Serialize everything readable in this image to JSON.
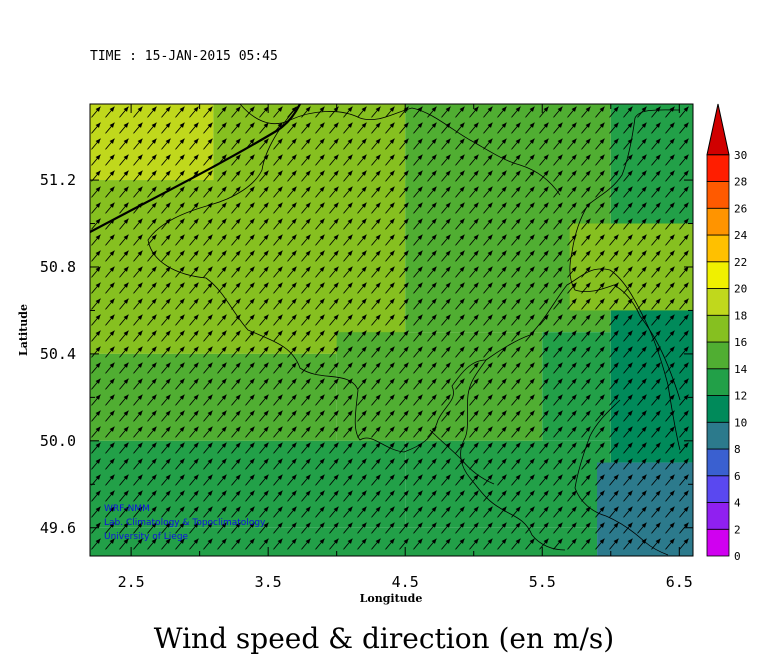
{
  "header": {
    "time_label": "TIME : 15-JAN-2015 05:45"
  },
  "credits": [
    "WRF-NMM",
    "Lab. Climatology & Topoclimatology",
    "University of Liege"
  ],
  "footer": {
    "title": "Wind speed & direction (en m/s)"
  },
  "chart_data": {
    "type": "heatmap",
    "xlabel": "Longitude",
    "ylabel": "Latitude",
    "xlim": [
      2.2,
      6.6
    ],
    "ylim": [
      49.47,
      51.55
    ],
    "x_ticks": [
      2.5,
      3.5,
      4.5,
      5.5,
      6.5
    ],
    "x_tick_labels": [
      "2.5",
      "3.5",
      "4.5",
      "5.5",
      "6.5"
    ],
    "y_ticks": [
      49.6,
      50.0,
      50.4,
      50.8,
      51.2
    ],
    "y_tick_labels": [
      "49.6",
      "50.0",
      "50.4",
      "50.8",
      "51.2"
    ],
    "arrow_direction_deg": 50,
    "colorbar": {
      "min": 0,
      "max": 30,
      "step": 2,
      "tick_labels": [
        "0",
        "2",
        "4",
        "6",
        "8",
        "10",
        "12",
        "14",
        "16",
        "18",
        "20",
        "22",
        "24",
        "26",
        "28",
        "30"
      ],
      "colors": [
        "#d000f0",
        "#9020f0",
        "#5a48f0",
        "#3a60d0",
        "#2c7a8c",
        "#008a5a",
        "#22a048",
        "#50ae32",
        "#86c020",
        "#c0d81c",
        "#f0f000",
        "#ffc000",
        "#ff9400",
        "#ff5a00",
        "#ff1e00",
        "#d00000"
      ]
    },
    "regions": [
      {
        "value": 19.5,
        "lon": [
          2.2,
          3.1
        ],
        "lat": [
          51.2,
          51.55
        ]
      },
      {
        "value": 17,
        "lon": [
          3.1,
          4.5
        ],
        "lat": [
          51.1,
          51.55
        ]
      },
      {
        "value": 16,
        "lon": [
          2.2,
          4.5
        ],
        "lat": [
          50.4,
          51.2
        ]
      },
      {
        "value": 15,
        "lon": [
          4.5,
          6.0
        ],
        "lat": [
          50.5,
          51.55
        ]
      },
      {
        "value": 13,
        "lon": [
          6.0,
          6.6
        ],
        "lat": [
          50.6,
          51.55
        ]
      },
      {
        "value": 16,
        "lon": [
          5.7,
          6.6
        ],
        "lat": [
          50.6,
          51.0
        ]
      },
      {
        "value": 15,
        "lon": [
          2.2,
          4.0
        ],
        "lat": [
          50.0,
          50.4
        ]
      },
      {
        "value": 14.5,
        "lon": [
          4.0,
          5.5
        ],
        "lat": [
          50.0,
          50.5
        ]
      },
      {
        "value": 13,
        "lon": [
          5.5,
          6.0
        ],
        "lat": [
          50.0,
          50.5
        ]
      },
      {
        "value": 11.5,
        "lon": [
          6.0,
          6.6
        ],
        "lat": [
          49.9,
          50.6
        ]
      },
      {
        "value": 13.5,
        "lon": [
          2.2,
          4.5
        ],
        "lat": [
          49.6,
          50.0
        ]
      },
      {
        "value": 12,
        "lon": [
          4.5,
          6.0
        ],
        "lat": [
          49.6,
          50.0
        ]
      },
      {
        "value": 12.5,
        "lon": [
          2.2,
          5.9
        ],
        "lat": [
          49.47,
          49.6
        ]
      },
      {
        "value": 9,
        "lon": [
          5.9,
          6.6
        ],
        "lat": [
          49.47,
          49.9
        ]
      }
    ]
  }
}
